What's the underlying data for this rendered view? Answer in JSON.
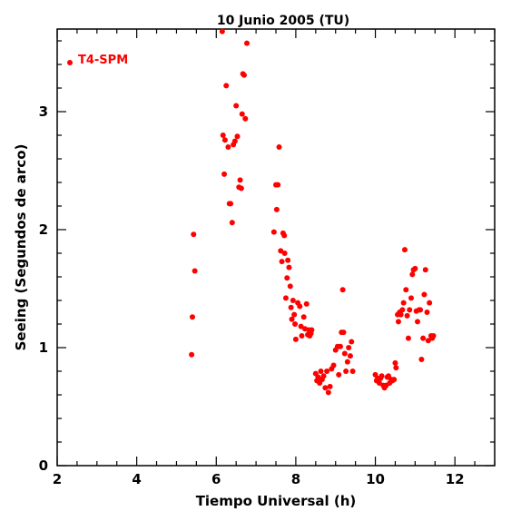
{
  "chart_data": {
    "type": "scatter",
    "title": "10 Junio 2005 (TU)",
    "xlabel": "Tiempo Universal (h)",
    "ylabel": "Seeing (Segundos de arco)",
    "xlim": [
      2,
      13
    ],
    "ylim": [
      0,
      3.7
    ],
    "xticks": [
      2,
      4,
      6,
      8,
      10,
      12
    ],
    "yticks": [
      0,
      1,
      2,
      3
    ],
    "x_minor_step": 0.5,
    "y_minor_step": 0.2,
    "grid": false,
    "legend_position": "top-left",
    "colors": {
      "series": "#ff0000",
      "axes": "#000000"
    },
    "series": [
      {
        "name": "T4-SPM",
        "marker": "filled-circle",
        "points": [
          [
            5.38,
            0.94
          ],
          [
            5.4,
            1.26
          ],
          [
            5.43,
            1.96
          ],
          [
            5.46,
            1.65
          ],
          [
            6.15,
            3.68
          ],
          [
            6.17,
            2.8
          ],
          [
            6.2,
            2.47
          ],
          [
            6.22,
            2.76
          ],
          [
            6.25,
            3.22
          ],
          [
            6.3,
            2.7
          ],
          [
            6.33,
            2.22
          ],
          [
            6.36,
            2.22
          ],
          [
            6.4,
            2.06
          ],
          [
            6.43,
            2.72
          ],
          [
            6.47,
            2.75
          ],
          [
            6.5,
            3.05
          ],
          [
            6.53,
            2.79
          ],
          [
            6.57,
            2.36
          ],
          [
            6.6,
            2.42
          ],
          [
            6.63,
            2.35
          ],
          [
            6.65,
            2.98
          ],
          [
            6.67,
            3.32
          ],
          [
            6.7,
            3.31
          ],
          [
            6.73,
            2.94
          ],
          [
            6.77,
            3.58
          ],
          [
            7.45,
            1.98
          ],
          [
            7.5,
            2.38
          ],
          [
            7.52,
            2.17
          ],
          [
            7.55,
            2.38
          ],
          [
            7.58,
            2.7
          ],
          [
            7.62,
            1.82
          ],
          [
            7.65,
            1.73
          ],
          [
            7.68,
            1.97
          ],
          [
            7.71,
            1.95
          ],
          [
            7.72,
            1.8
          ],
          [
            7.75,
            1.42
          ],
          [
            7.78,
            1.59
          ],
          [
            7.8,
            1.74
          ],
          [
            7.83,
            1.68
          ],
          [
            7.86,
            1.52
          ],
          [
            7.88,
            1.34
          ],
          [
            7.9,
            1.24
          ],
          [
            7.93,
            1.4
          ],
          [
            7.96,
            1.28
          ],
          [
            7.98,
            1.2
          ],
          [
            8.0,
            1.07
          ],
          [
            8.05,
            1.38
          ],
          [
            8.1,
            1.35
          ],
          [
            8.13,
            1.18
          ],
          [
            8.15,
            1.1
          ],
          [
            8.2,
            1.26
          ],
          [
            8.23,
            1.16
          ],
          [
            8.27,
            1.37
          ],
          [
            8.3,
            1.11
          ],
          [
            8.33,
            1.15
          ],
          [
            8.35,
            1.1
          ],
          [
            8.38,
            1.12
          ],
          [
            8.4,
            1.15
          ],
          [
            8.5,
            0.78
          ],
          [
            8.53,
            0.72
          ],
          [
            8.56,
            0.75
          ],
          [
            8.6,
            0.7
          ],
          [
            8.63,
            0.8
          ],
          [
            8.66,
            0.73
          ],
          [
            8.7,
            0.76
          ],
          [
            8.74,
            0.66
          ],
          [
            8.78,
            0.8
          ],
          [
            8.82,
            0.62
          ],
          [
            8.86,
            0.67
          ],
          [
            8.9,
            0.82
          ],
          [
            8.95,
            0.85
          ],
          [
            9.0,
            0.98
          ],
          [
            9.05,
            1.01
          ],
          [
            9.08,
            0.77
          ],
          [
            9.12,
            1.01
          ],
          [
            9.15,
            1.13
          ],
          [
            9.18,
            1.49
          ],
          [
            9.2,
            1.13
          ],
          [
            9.23,
            0.95
          ],
          [
            9.26,
            0.8
          ],
          [
            9.3,
            0.88
          ],
          [
            9.33,
            1.0
          ],
          [
            9.37,
            0.93
          ],
          [
            9.4,
            1.05
          ],
          [
            9.43,
            0.8
          ],
          [
            10.0,
            0.77
          ],
          [
            10.03,
            0.72
          ],
          [
            10.06,
            0.74
          ],
          [
            10.1,
            0.7
          ],
          [
            10.13,
            0.74
          ],
          [
            10.16,
            0.76
          ],
          [
            10.2,
            0.68
          ],
          [
            10.23,
            0.66
          ],
          [
            10.27,
            0.68
          ],
          [
            10.3,
            0.75
          ],
          [
            10.33,
            0.76
          ],
          [
            10.36,
            0.7
          ],
          [
            10.4,
            0.73
          ],
          [
            10.43,
            0.72
          ],
          [
            10.47,
            0.73
          ],
          [
            10.5,
            0.87
          ],
          [
            10.52,
            0.83
          ],
          [
            10.56,
            1.28
          ],
          [
            10.58,
            1.22
          ],
          [
            10.61,
            1.3
          ],
          [
            10.64,
            1.28
          ],
          [
            10.68,
            1.32
          ],
          [
            10.71,
            1.38
          ],
          [
            10.74,
            1.83
          ],
          [
            10.77,
            1.49
          ],
          [
            10.8,
            1.27
          ],
          [
            10.83,
            1.08
          ],
          [
            10.86,
            1.32
          ],
          [
            10.9,
            1.42
          ],
          [
            10.93,
            1.62
          ],
          [
            10.96,
            1.66
          ],
          [
            11.0,
            1.67
          ],
          [
            11.03,
            1.31
          ],
          [
            11.06,
            1.22
          ],
          [
            11.1,
            1.32
          ],
          [
            11.13,
            1.32
          ],
          [
            11.16,
            0.9
          ],
          [
            11.2,
            1.08
          ],
          [
            11.23,
            1.45
          ],
          [
            11.26,
            1.66
          ],
          [
            11.3,
            1.3
          ],
          [
            11.33,
            1.06
          ],
          [
            11.36,
            1.38
          ],
          [
            11.4,
            1.1
          ],
          [
            11.43,
            1.08
          ],
          [
            11.46,
            1.1
          ]
        ]
      }
    ]
  }
}
